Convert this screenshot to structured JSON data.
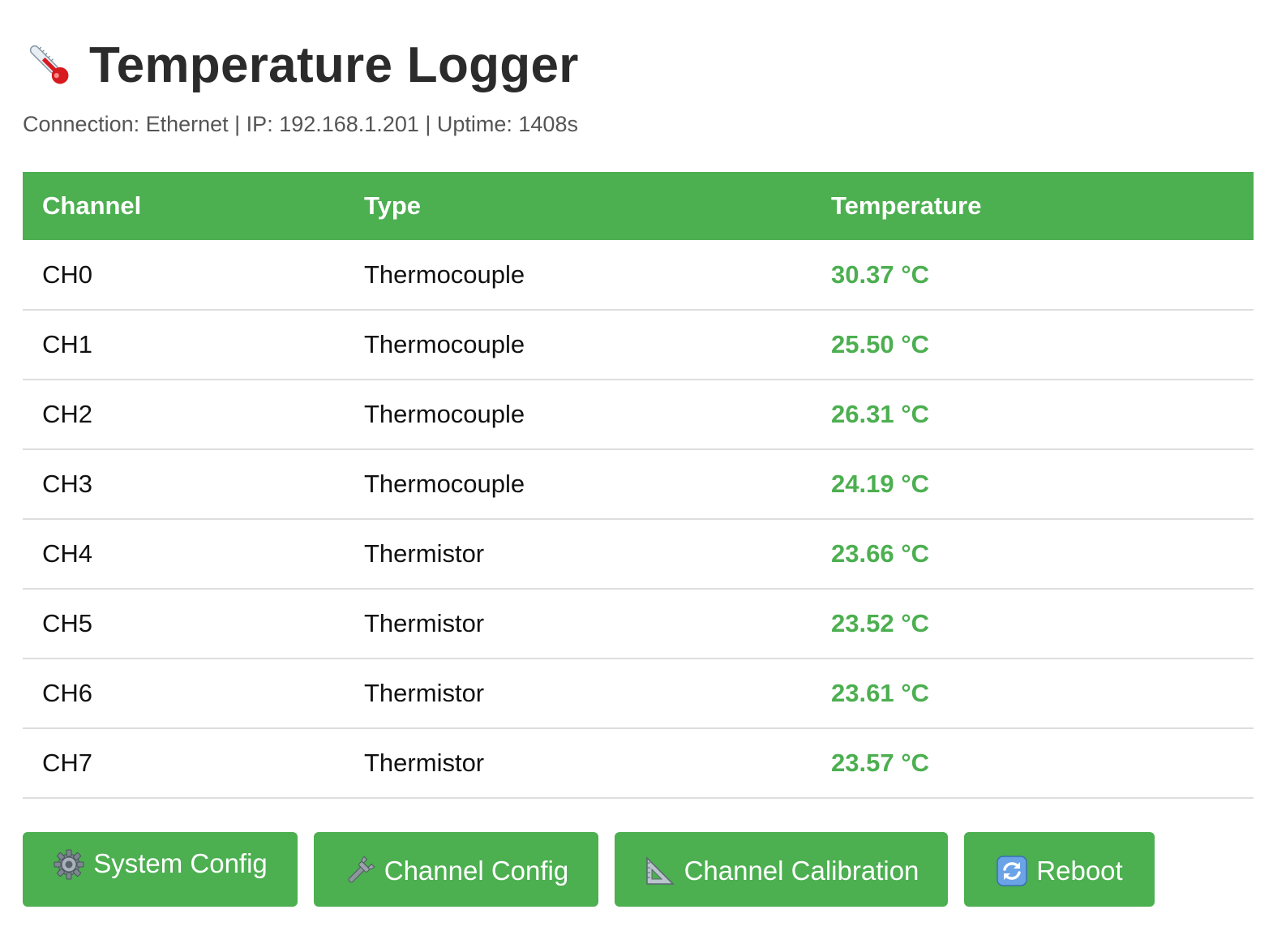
{
  "header": {
    "title": "Temperature Logger",
    "icon": "thermometer-icon",
    "status": "Connection: Ethernet | IP: 192.168.1.201 | Uptime: 1408s"
  },
  "table": {
    "headers": [
      "Channel",
      "Type",
      "Temperature"
    ],
    "rows": [
      {
        "channel": "CH0",
        "type": "Thermocouple",
        "temperature": "30.37 °C"
      },
      {
        "channel": "CH1",
        "type": "Thermocouple",
        "temperature": "25.50 °C"
      },
      {
        "channel": "CH2",
        "type": "Thermocouple",
        "temperature": "26.31 °C"
      },
      {
        "channel": "CH3",
        "type": "Thermocouple",
        "temperature": "24.19 °C"
      },
      {
        "channel": "CH4",
        "type": "Thermistor",
        "temperature": "23.66 °C"
      },
      {
        "channel": "CH5",
        "type": "Thermistor",
        "temperature": "23.52 °C"
      },
      {
        "channel": "CH6",
        "type": "Thermistor",
        "temperature": "23.61 °C"
      },
      {
        "channel": "CH7",
        "type": "Thermistor",
        "temperature": "23.57 °C"
      }
    ]
  },
  "buttons": {
    "system_config": {
      "label": "System Config",
      "icon": "gear-icon"
    },
    "channel_config": {
      "label": "Channel Config",
      "icon": "wrench-icon"
    },
    "channel_calibration": {
      "label": "Channel Calibration",
      "icon": "triangle-ruler-icon"
    },
    "reboot": {
      "label": "Reboot",
      "icon": "refresh-icon"
    }
  },
  "colors": {
    "accent": "#4caf50",
    "title": "#2b2b2b",
    "status_text": "#555555",
    "row_divider": "#dddddd"
  }
}
